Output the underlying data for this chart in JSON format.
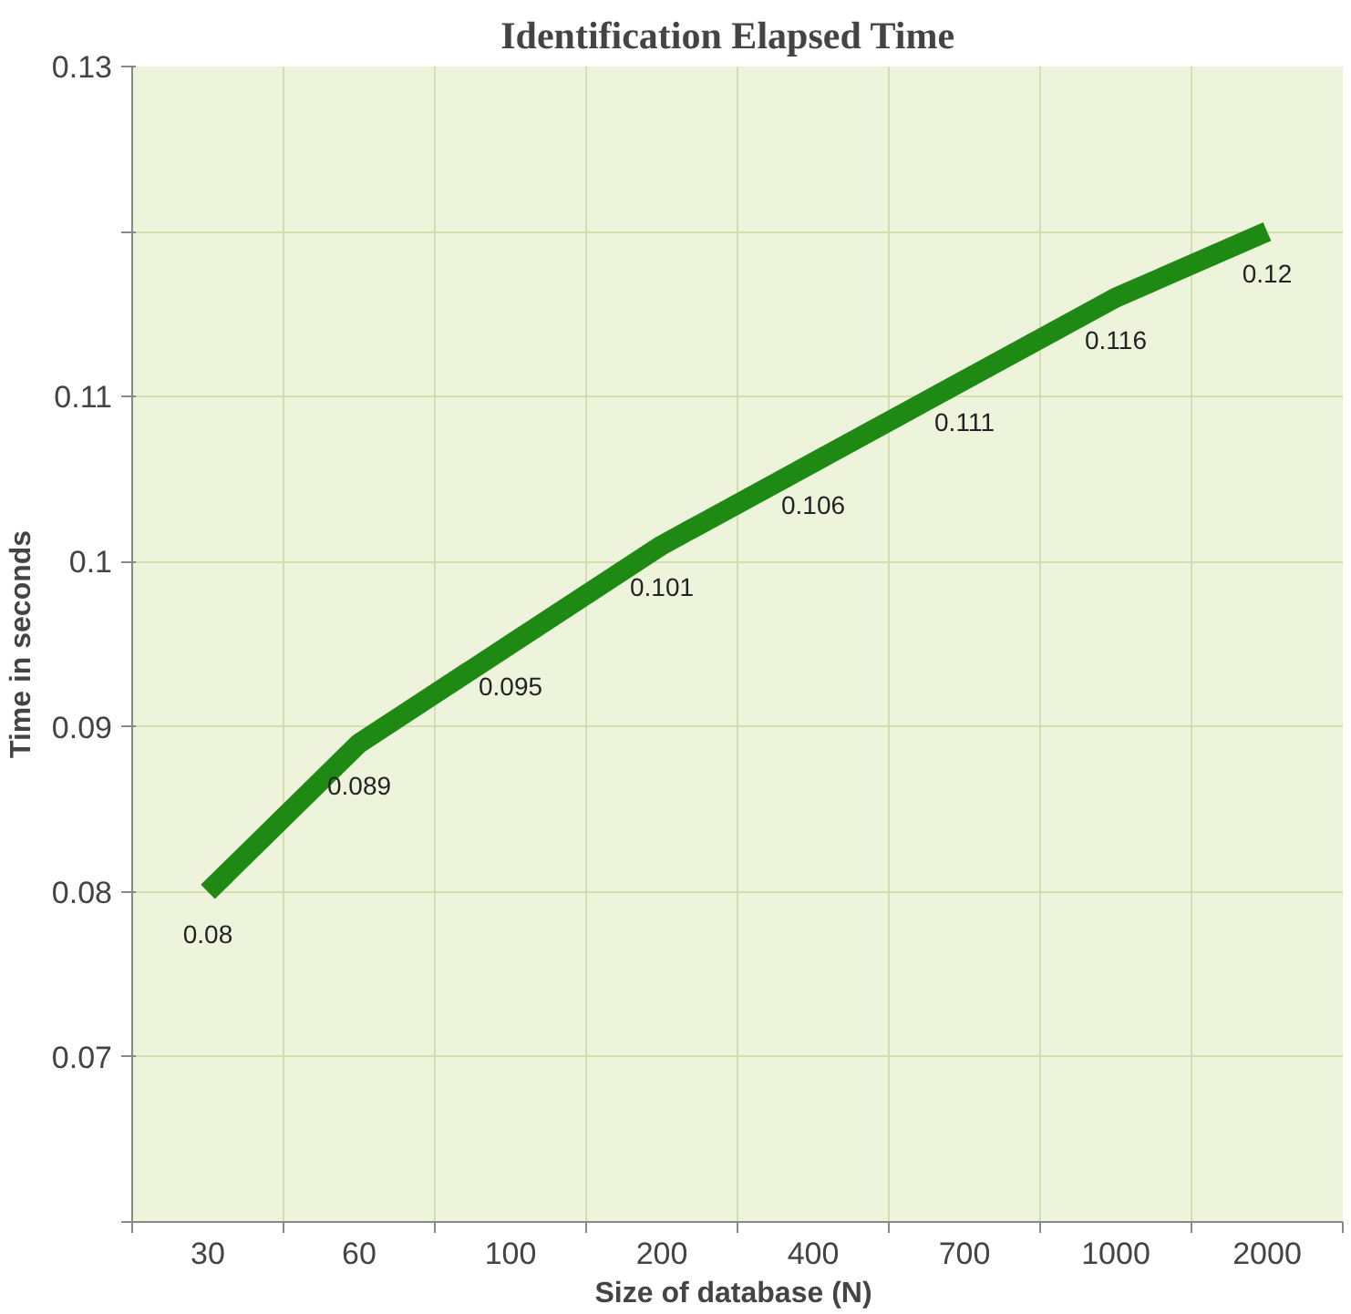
{
  "chart_data": {
    "type": "line",
    "title": "Identification  Elapsed  Time",
    "xlabel": "Size of  database (N)",
    "ylabel": "Time in seconds",
    "categories": [
      "30",
      "60",
      "100",
      "200",
      "400",
      "700",
      "1000",
      "2000"
    ],
    "series": [
      {
        "color": "#1f8a13",
        "values": [
          0.08,
          0.089,
          0.095,
          0.101,
          0.106,
          0.111,
          0.116,
          0.12
        ]
      }
    ],
    "ylim": [
      0.06,
      0.13
    ],
    "yticks": [
      {
        "value": 0.06,
        "label": null
      },
      0.07,
      0.08,
      0.09,
      0.1,
      0.11,
      {
        "value": 0.12,
        "label": null
      },
      0.13
    ],
    "grid": true,
    "data_labels": true,
    "marker": "none",
    "line_style": "solid"
  }
}
